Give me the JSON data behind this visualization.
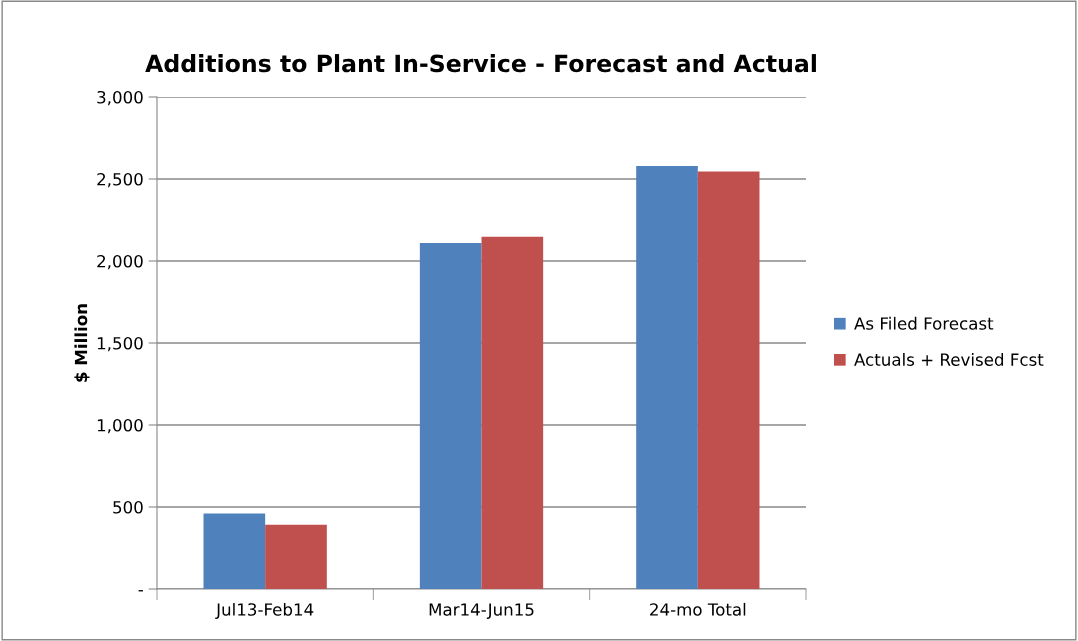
{
  "chart_data": {
    "type": "bar",
    "title": "Additions to Plant In-Service - Forecast and Actual",
    "ylabel": "$ Million",
    "categories": [
      "Jul13-Feb14",
      "Mar14-Jun15",
      "24-mo Total"
    ],
    "series": [
      {
        "name": "As Filed Forecast",
        "color": "#4f81bd",
        "values": [
          460,
          2109,
          2580
        ]
      },
      {
        "name": "Actuals + Revised Fcst",
        "color": "#c0504d",
        "values": [
          392,
          2148,
          2545
        ]
      }
    ],
    "ylim": [
      0,
      3000
    ],
    "yticks": [
      {
        "value": 0,
        "label": "-"
      },
      {
        "value": 500,
        "label": "500"
      },
      {
        "value": 1000,
        "label": "1,000"
      },
      {
        "value": 1500,
        "label": "1,500"
      },
      {
        "value": 2000,
        "label": "2,000"
      },
      {
        "value": 2500,
        "label": "2,500"
      },
      {
        "value": 3000,
        "label": "3,000"
      }
    ],
    "grid": "y",
    "legend": "right"
  }
}
